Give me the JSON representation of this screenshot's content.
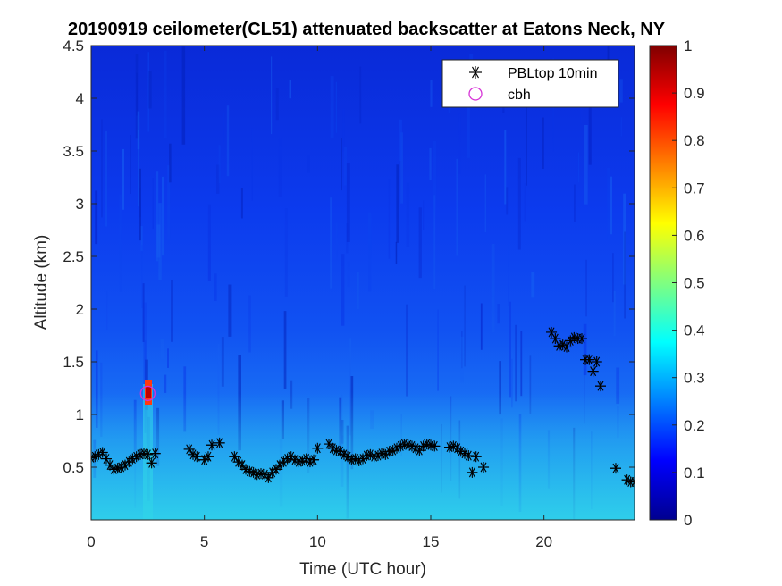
{
  "chart_data": {
    "type": "heatmap",
    "title": "20190919 ceilometer(CL51) attenuated backscatter at Eatons Neck, NY",
    "xlabel": "Time (UTC hour)",
    "ylabel": "Altitude (km)",
    "xlim": [
      0,
      24
    ],
    "ylim": [
      0,
      4.5
    ],
    "xticks": [
      0,
      5,
      10,
      15,
      20
    ],
    "xtick_labels": [
      "0",
      "5",
      "10",
      "15",
      "20"
    ],
    "yticks": [
      0.5,
      1,
      1.5,
      2,
      2.5,
      3,
      3.5,
      4,
      4.5
    ],
    "ytick_labels": [
      "0.5",
      "1",
      "1.5",
      "2",
      "2.5",
      "3",
      "3.5",
      "4",
      "4.5"
    ],
    "colorbar": {
      "colormap": "jet",
      "range": [
        0,
        1
      ],
      "ticks": [
        0,
        0.1,
        0.2,
        0.3,
        0.4,
        0.5,
        0.6,
        0.7,
        0.8,
        0.9,
        1
      ],
      "tick_labels": [
        "0",
        "0.1",
        "0.2",
        "0.3",
        "0.4",
        "0.5",
        "0.6",
        "0.7",
        "0.8",
        "0.9",
        "1"
      ]
    },
    "legend": {
      "placement": "top-right"
    },
    "series": [
      {
        "name": "PBLtop 10min",
        "marker": "asterisk",
        "color": "#000000",
        "x": [
          0.0,
          0.17,
          0.33,
          0.5,
          0.67,
          0.83,
          1.0,
          1.17,
          1.33,
          1.5,
          1.67,
          1.83,
          2.0,
          2.17,
          2.33,
          2.5,
          2.67,
          2.83,
          4.33,
          4.5,
          4.67,
          5.0,
          5.17,
          5.33,
          5.67,
          6.33,
          6.5,
          6.67,
          6.83,
          7.0,
          7.17,
          7.33,
          7.5,
          7.67,
          7.83,
          8.0,
          8.17,
          8.33,
          8.5,
          8.67,
          8.83,
          9.0,
          9.17,
          9.33,
          9.5,
          9.67,
          9.83,
          10.0,
          10.5,
          10.67,
          10.83,
          11.0,
          11.17,
          11.33,
          11.5,
          11.67,
          11.83,
          12.0,
          12.17,
          12.33,
          12.5,
          12.67,
          12.83,
          13.0,
          13.17,
          13.33,
          13.5,
          13.67,
          13.83,
          14.0,
          14.17,
          14.33,
          14.5,
          14.67,
          14.83,
          15.0,
          15.17,
          15.83,
          16.0,
          16.17,
          16.33,
          16.5,
          16.67,
          16.83,
          17.0,
          17.33,
          20.33,
          20.5,
          20.67,
          20.83,
          21.0,
          21.17,
          21.33,
          21.5,
          21.67,
          21.83,
          22.0,
          22.17,
          22.33,
          22.5,
          23.17,
          23.67,
          23.83,
          24.0
        ],
        "y": [
          0.59,
          0.6,
          0.62,
          0.64,
          0.58,
          0.52,
          0.48,
          0.49,
          0.5,
          0.52,
          0.55,
          0.58,
          0.6,
          0.62,
          0.63,
          0.62,
          0.54,
          0.63,
          0.67,
          0.62,
          0.6,
          0.57,
          0.6,
          0.71,
          0.73,
          0.6,
          0.55,
          0.52,
          0.48,
          0.46,
          0.45,
          0.43,
          0.44,
          0.43,
          0.4,
          0.45,
          0.48,
          0.52,
          0.55,
          0.58,
          0.6,
          0.57,
          0.55,
          0.56,
          0.58,
          0.55,
          0.57,
          0.68,
          0.72,
          0.68,
          0.66,
          0.65,
          0.62,
          0.6,
          0.57,
          0.58,
          0.56,
          0.58,
          0.61,
          0.62,
          0.6,
          0.61,
          0.63,
          0.62,
          0.65,
          0.66,
          0.68,
          0.7,
          0.72,
          0.71,
          0.7,
          0.68,
          0.66,
          0.7,
          0.72,
          0.71,
          0.7,
          0.69,
          0.7,
          0.68,
          0.65,
          0.63,
          0.61,
          0.45,
          0.6,
          0.5,
          1.78,
          1.72,
          1.65,
          1.66,
          1.64,
          1.7,
          1.73,
          1.72,
          1.72,
          1.52,
          1.52,
          1.41,
          1.5,
          1.27,
          0.49,
          0.38,
          0.36,
          0.36
        ]
      },
      {
        "name": "cbh",
        "marker": "circle",
        "color": "#d633d6",
        "x": [
          2.5
        ],
        "y": [
          1.2
        ]
      }
    ]
  }
}
